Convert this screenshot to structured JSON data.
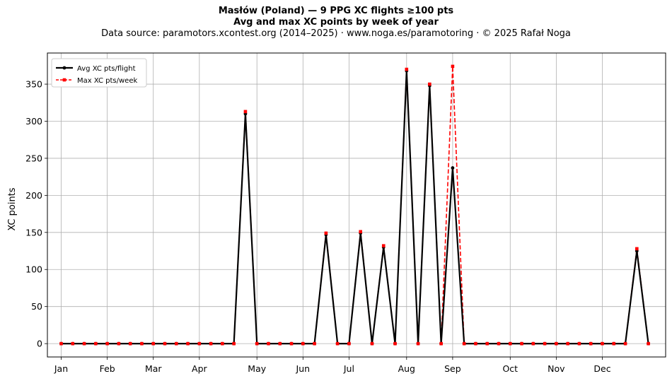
{
  "chart_data": {
    "type": "line",
    "title": "Masłów (Poland)  —  9 PPG XC flights ≥100 pts",
    "subtitle": "Avg and max XC points by week of year",
    "source": "Data source: paramotors.xcontest.org (2014–2025)  ·  www.noga.es/paramotoring  ·  © 2025 Rafał Noga",
    "xlabel": "",
    "ylabel": "XC points",
    "xlim": [
      -0.2,
      53.5
    ],
    "ylim": [
      -18,
      392
    ],
    "yticks": [
      0,
      50,
      100,
      150,
      200,
      250,
      300,
      350
    ],
    "xticks": [
      {
        "week": 1,
        "label": "Jan"
      },
      {
        "week": 5,
        "label": "Feb"
      },
      {
        "week": 9,
        "label": "Mar"
      },
      {
        "week": 13,
        "label": "Apr"
      },
      {
        "week": 18,
        "label": "May"
      },
      {
        "week": 22,
        "label": "Jun"
      },
      {
        "week": 26,
        "label": "Jul"
      },
      {
        "week": 31,
        "label": "Aug"
      },
      {
        "week": 35,
        "label": "Sep"
      },
      {
        "week": 40,
        "label": "Oct"
      },
      {
        "week": 44,
        "label": "Nov"
      },
      {
        "week": 48,
        "label": "Dec"
      }
    ],
    "grid": true,
    "legend_position": "top-left",
    "x": [
      1,
      2,
      3,
      4,
      5,
      6,
      7,
      8,
      9,
      10,
      11,
      12,
      13,
      14,
      15,
      16,
      17,
      18,
      19,
      20,
      21,
      22,
      23,
      24,
      25,
      26,
      27,
      28,
      29,
      30,
      31,
      32,
      33,
      34,
      35,
      36,
      37,
      38,
      39,
      40,
      41,
      42,
      43,
      44,
      45,
      46,
      47,
      48,
      49,
      50,
      51,
      52
    ],
    "series": [
      {
        "name": "Avg XC pts/flight",
        "color": "#000000",
        "style": "solid-circle",
        "values": [
          0,
          0,
          0,
          0,
          0,
          0,
          0,
          0,
          0,
          0,
          0,
          0,
          0,
          0,
          0,
          0,
          310,
          0,
          0,
          0,
          0,
          0,
          0,
          147,
          0,
          0,
          149,
          0,
          130,
          0,
          368,
          0,
          348,
          0,
          237,
          0,
          0,
          0,
          0,
          0,
          0,
          0,
          0,
          0,
          0,
          0,
          0,
          0,
          0,
          0,
          125,
          0
        ]
      },
      {
        "name": "Max XC pts/week",
        "color": "#ff0000",
        "style": "dashed-square",
        "values": [
          0,
          0,
          0,
          0,
          0,
          0,
          0,
          0,
          0,
          0,
          0,
          0,
          0,
          0,
          0,
          0,
          313,
          0,
          0,
          0,
          0,
          0,
          0,
          149,
          0,
          0,
          151,
          0,
          132,
          0,
          370,
          0,
          350,
          0,
          374,
          0,
          0,
          0,
          0,
          0,
          0,
          0,
          0,
          0,
          0,
          0,
          0,
          0,
          0,
          0,
          128,
          0
        ]
      }
    ]
  }
}
